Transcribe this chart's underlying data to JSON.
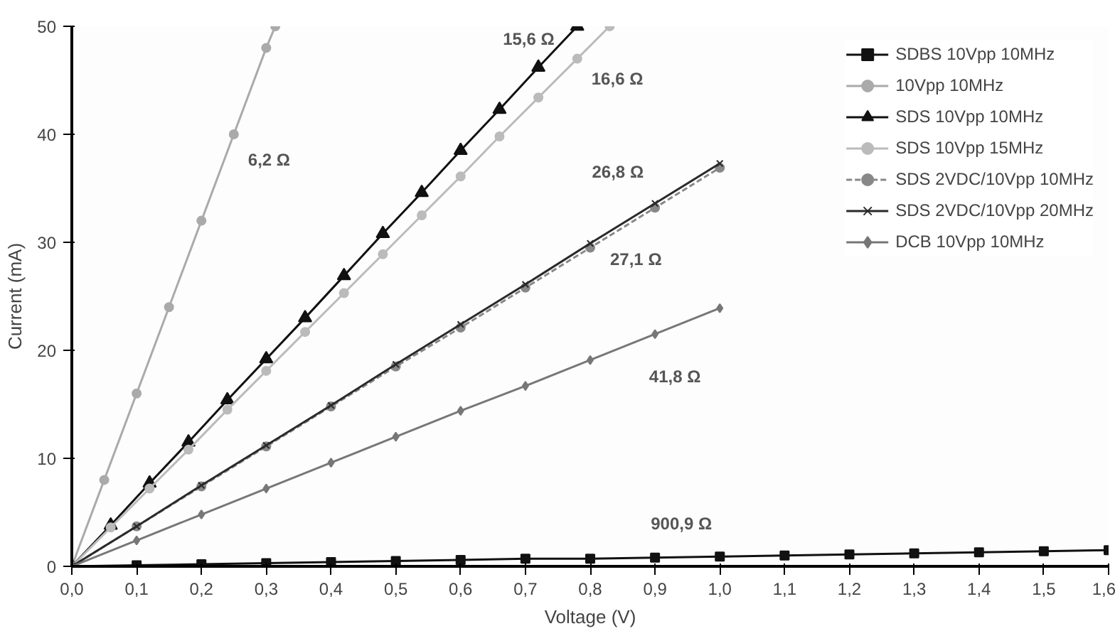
{
  "chart_data": {
    "type": "line",
    "xlabel": "Voltage (V)",
    "ylabel": "Current (mA)",
    "xlim": [
      0,
      1.6
    ],
    "ylim": [
      0,
      50
    ],
    "xticks": [
      {
        "value": 0,
        "label": "0,0"
      },
      {
        "value": 0.1,
        "label": "0,1"
      },
      {
        "value": 0.2,
        "label": "0,2"
      },
      {
        "value": 0.3,
        "label": "0,3"
      },
      {
        "value": 0.4,
        "label": "0,4"
      },
      {
        "value": 0.5,
        "label": "0,5"
      },
      {
        "value": 0.6,
        "label": "0,6"
      },
      {
        "value": 0.7,
        "label": "0,7"
      },
      {
        "value": 0.8,
        "label": "0,8"
      },
      {
        "value": 0.9,
        "label": "0,9"
      },
      {
        "value": 1.0,
        "label": "1,0"
      },
      {
        "value": 1.1,
        "label": "1,1"
      },
      {
        "value": 1.2,
        "label": "1,2"
      },
      {
        "value": 1.3,
        "label": "1,3"
      },
      {
        "value": 1.4,
        "label": "1,4"
      },
      {
        "value": 1.5,
        "label": "1,5"
      },
      {
        "value": 1.6,
        "label": "1,6"
      }
    ],
    "yticks": [
      0,
      10,
      20,
      30,
      40,
      50
    ],
    "grid": false,
    "legend": "top right",
    "series": [
      {
        "name": "SDBS 10Vpp 10MHz",
        "color": "#111111",
        "marker": "square",
        "x": [
          0,
          0.1,
          0.2,
          0.3,
          0.4,
          0.5,
          0.6,
          0.7,
          0.8,
          0.9,
          1.0,
          1.1,
          1.2,
          1.3,
          1.4,
          1.5,
          1.6
        ],
        "values": [
          0,
          0.1,
          0.2,
          0.3,
          0.4,
          0.5,
          0.6,
          0.7,
          0.7,
          0.8,
          0.9,
          1.0,
          1.1,
          1.2,
          1.3,
          1.4,
          1.5
        ]
      },
      {
        "name": "10Vpp 10MHz",
        "color": "#aaaaaa",
        "marker": "circle",
        "x": [
          0,
          0.05,
          0.1,
          0.15,
          0.2,
          0.25,
          0.3,
          0.314
        ],
        "values": [
          0,
          8,
          16,
          24,
          32,
          40,
          48,
          50
        ]
      },
      {
        "name": "SDS 10Vpp 10MHz",
        "color": "#111111",
        "marker": "triangle",
        "x": [
          0,
          0.06,
          0.12,
          0.18,
          0.24,
          0.3,
          0.36,
          0.42,
          0.48,
          0.54,
          0.6,
          0.66,
          0.72,
          0.78
        ],
        "values": [
          0,
          3.8,
          7.7,
          11.5,
          15.4,
          19.2,
          23,
          26.9,
          30.8,
          34.6,
          38.5,
          42.3,
          46.2,
          50
        ]
      },
      {
        "name": "SDS 10Vpp 15MHz",
        "color": "#bbbbbb",
        "marker": "circle",
        "x": [
          0,
          0.06,
          0.12,
          0.18,
          0.24,
          0.3,
          0.36,
          0.42,
          0.48,
          0.54,
          0.6,
          0.66,
          0.72,
          0.78,
          0.83
        ],
        "values": [
          0,
          3.6,
          7.2,
          10.8,
          14.5,
          18.1,
          21.7,
          25.3,
          28.9,
          32.5,
          36.1,
          39.8,
          43.4,
          47,
          50
        ]
      },
      {
        "name": "SDS 2VDC/10Vpp 10MHz",
        "color": "#888888",
        "marker": "circle",
        "line_style": "dashed",
        "x": [
          0,
          0.1,
          0.2,
          0.3,
          0.4,
          0.5,
          0.6,
          0.7,
          0.8,
          0.9,
          1.0
        ],
        "values": [
          0,
          3.7,
          7.4,
          11.1,
          14.8,
          18.5,
          22.1,
          25.8,
          29.5,
          33.2,
          36.9
        ]
      },
      {
        "name": "SDS 2VDC/10Vpp 20MHz",
        "color": "#2a2a2a",
        "marker": "cross",
        "x": [
          0,
          0.1,
          0.2,
          0.3,
          0.4,
          0.5,
          0.6,
          0.7,
          0.8,
          0.9,
          1.0
        ],
        "values": [
          0,
          3.7,
          7.5,
          11.2,
          14.9,
          18.7,
          22.4,
          26.1,
          29.9,
          33.6,
          37.3
        ]
      },
      {
        "name": "DCB 10Vpp 10MHz",
        "color": "#777777",
        "marker": "diamond",
        "x": [
          0,
          0.1,
          0.2,
          0.3,
          0.4,
          0.5,
          0.6,
          0.7,
          0.8,
          0.9,
          1.0
        ],
        "values": [
          0,
          2.4,
          4.8,
          7.2,
          9.6,
          12,
          14.4,
          16.7,
          19.1,
          21.5,
          23.9
        ]
      }
    ],
    "annotations": [
      {
        "text": "6,2 Ω",
        "x": 0.25,
        "y": 40
      },
      {
        "text": "15,6 Ω",
        "x": 0.78,
        "y": 50
      },
      {
        "text": "16,6 Ω",
        "x": 0.78,
        "y": 47
      },
      {
        "text": "26,8 Ω",
        "x": 0.9,
        "y": 33.6
      },
      {
        "text": "27,1 Ω",
        "x": 0.8,
        "y": 29.5
      },
      {
        "text": "41,8 Ω",
        "x": 0.9,
        "y": 21.5
      },
      {
        "text": "900,9 Ω",
        "x": 1.0,
        "y": 0.9
      }
    ]
  }
}
